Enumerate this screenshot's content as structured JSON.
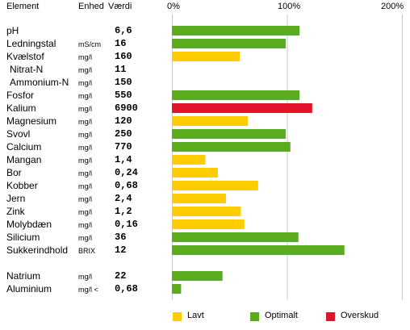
{
  "header": {
    "element": "Element",
    "unit": "Enhed",
    "value": "Værdi",
    "tick_0": "0%",
    "tick_100": "100%",
    "tick_200": "200%"
  },
  "colors": {
    "lavt": "#ffcc00",
    "optimalt": "#5aab1e",
    "overskud": "#e0142a",
    "grid": "#c8c8c8"
  },
  "legend": [
    {
      "label": "Lavt",
      "color": "#ffcc00"
    },
    {
      "label": "Optimalt",
      "color": "#5aab1e"
    },
    {
      "label": "Overskud",
      "color": "#e0142a"
    }
  ],
  "rows": [
    {
      "element": "pH",
      "unit": "",
      "value": "6,6",
      "indent": false
    },
    {
      "element": "Ledningstal",
      "unit": "mS/cm",
      "value": "16",
      "indent": false
    },
    {
      "element": "Kvælstof",
      "unit": "mg/l",
      "value": "160",
      "indent": false
    },
    {
      "element": "Nitrat-N",
      "unit": "mg/l",
      "value": "11",
      "indent": true
    },
    {
      "element": "Ammonium-N",
      "unit": "mg/l",
      "value": "150",
      "indent": true
    },
    {
      "element": "Fosfor",
      "unit": "mg/l",
      "value": "550",
      "indent": false
    },
    {
      "element": "Kalium",
      "unit": "mg/l",
      "value": "6900",
      "indent": false
    },
    {
      "element": "Magnesium",
      "unit": "mg/l",
      "value": "120",
      "indent": false
    },
    {
      "element": "Svovl",
      "unit": "mg/l",
      "value": "250",
      "indent": false
    },
    {
      "element": "Calcium",
      "unit": "mg/l",
      "value": "770",
      "indent": false
    },
    {
      "element": "Mangan",
      "unit": "mg/l",
      "value": "1,4",
      "indent": false
    },
    {
      "element": "Bor",
      "unit": "mg/l",
      "value": "0,24",
      "indent": false
    },
    {
      "element": "Kobber",
      "unit": "mg/l",
      "value": "0,68",
      "indent": false
    },
    {
      "element": "Jern",
      "unit": "mg/l",
      "value": "2,4",
      "indent": false
    },
    {
      "element": "Zink",
      "unit": "mg/l",
      "value": "1,2",
      "indent": false
    },
    {
      "element": "Molybdæn",
      "unit": "mg/l",
      "value": "0,16",
      "indent": false
    },
    {
      "element": "Silicium",
      "unit": "mg/l",
      "value": "36",
      "indent": false
    },
    {
      "element": "Sukkerindhold",
      "unit": "BRIX",
      "value": "12",
      "indent": false
    },
    {
      "element": "Natrium",
      "unit": "mg/l",
      "value": "22",
      "indent": false
    },
    {
      "element": "Aluminium",
      "unit": "mg/l <",
      "value": "0,68",
      "indent": false
    }
  ],
  "chart_data": {
    "type": "bar",
    "orientation": "horizontal",
    "xlim": [
      0,
      200
    ],
    "x_ticks": [
      "0%",
      "100%",
      "200%"
    ],
    "grid": true,
    "legend_position": "bottom",
    "categories": [
      "pH",
      "Ledningstal",
      "Kvælstof",
      "Nitrat-N",
      "Ammonium-N",
      "Fosfor",
      "Kalium",
      "Magnesium",
      "Svovl",
      "Calcium",
      "Mangan",
      "Bor",
      "Kobber",
      "Jern",
      "Zink",
      "Molybdæn",
      "Silicium",
      "Sukkerindhold",
      "Natrium",
      "Aluminium"
    ],
    "values": [
      111,
      99,
      59,
      null,
      null,
      111,
      122,
      66,
      99,
      103,
      29,
      40,
      75,
      47,
      60,
      63,
      110,
      150,
      44,
      8
    ],
    "status": [
      "optimalt",
      "optimalt",
      "lavt",
      null,
      null,
      "optimalt",
      "overskud",
      "lavt",
      "optimalt",
      "optimalt",
      "lavt",
      "lavt",
      "lavt",
      "lavt",
      "lavt",
      "lavt",
      "optimalt",
      "optimalt",
      "optimalt",
      "optimalt"
    ]
  }
}
